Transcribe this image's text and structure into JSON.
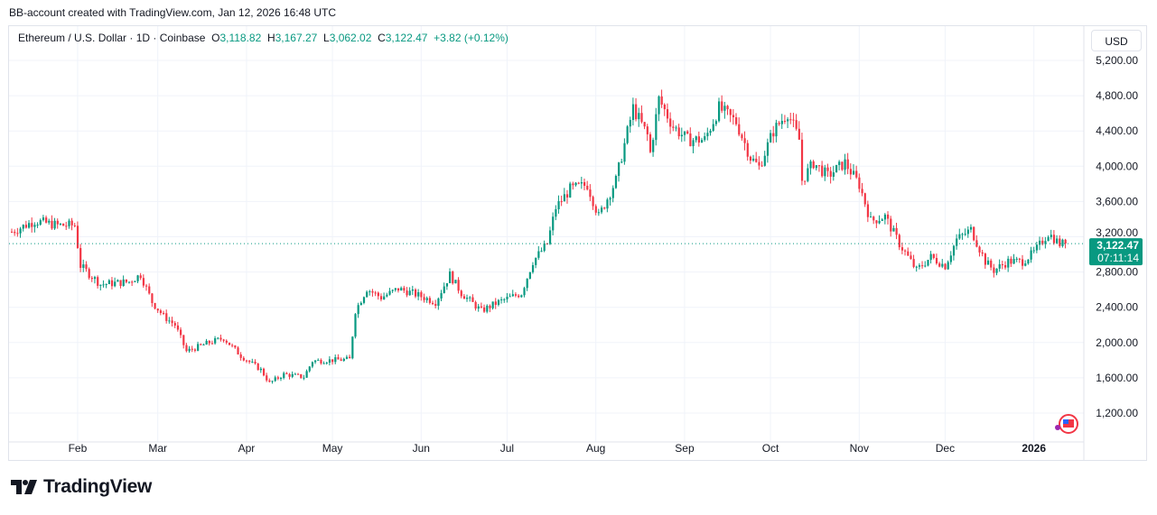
{
  "caption": "BB-account created with TradingView.com, Jan 12, 2026 16:48 UTC",
  "legend": {
    "symbol": "Ethereum / U.S. Dollar · 1D · Coinbase",
    "o_label": "O",
    "o": "3,118.82",
    "h_label": "H",
    "h": "3,167.27",
    "l_label": "L",
    "l": "3,062.02",
    "c_label": "C",
    "c": "3,122.47",
    "change": "+3.82 (+0.12%)"
  },
  "currency": "USD",
  "last_price": {
    "price": "3,122.47",
    "countdown": "07:11:14"
  },
  "brand": "TradingView",
  "colors": {
    "up": "#089981",
    "down": "#f23645"
  },
  "chart_data": {
    "type": "candlestick",
    "title": "Ethereum / U.S. Dollar · 1D · Coinbase",
    "x_unit": "days since Jan 9 2025",
    "total_days": 368,
    "ylim": [
      800,
      5450
    ],
    "y_ticks": [
      1200,
      1600,
      2000,
      2400,
      2800,
      3200,
      3600,
      4000,
      4400,
      4800,
      5200
    ],
    "y_tick_labels": [
      "1,200.00",
      "1,600.00",
      "2,000.00",
      "2,400.00",
      "2,800.00",
      "3,200.00",
      "3,600.00",
      "4,000.00",
      "4,400.00",
      "4,800.00",
      "5,200.00"
    ],
    "x_ticks": [
      {
        "label": "Feb",
        "day": 23
      },
      {
        "label": "Mar",
        "day": 51
      },
      {
        "label": "Apr",
        "day": 82
      },
      {
        "label": "May",
        "day": 112
      },
      {
        "label": "Jun",
        "day": 143
      },
      {
        "label": "Jul",
        "day": 173
      },
      {
        "label": "Aug",
        "day": 204
      },
      {
        "label": "Sep",
        "day": 235
      },
      {
        "label": "Oct",
        "day": 265
      },
      {
        "label": "Nov",
        "day": 296
      },
      {
        "label": "Dec",
        "day": 326
      },
      {
        "label": "2026",
        "day": 357
      }
    ],
    "approx_close_anchors": [
      [
        0,
        3256
      ],
      [
        8,
        3380
      ],
      [
        16,
        3330
      ],
      [
        22,
        3330
      ],
      [
        24,
        2870
      ],
      [
        31,
        2660
      ],
      [
        41,
        2690
      ],
      [
        45,
        2770
      ],
      [
        49,
        2460
      ],
      [
        53,
        2300
      ],
      [
        57,
        2200
      ],
      [
        61,
        1900
      ],
      [
        69,
        2000
      ],
      [
        74,
        2050
      ],
      [
        80,
        1850
      ],
      [
        87,
        1690
      ],
      [
        90,
        1540
      ],
      [
        95,
        1640
      ],
      [
        102,
        1610
      ],
      [
        105,
        1790
      ],
      [
        118,
        1810
      ],
      [
        120,
        2360
      ],
      [
        124,
        2610
      ],
      [
        129,
        2510
      ],
      [
        135,
        2610
      ],
      [
        140,
        2560
      ],
      [
        148,
        2460
      ],
      [
        153,
        2770
      ],
      [
        157,
        2560
      ],
      [
        164,
        2360
      ],
      [
        170,
        2460
      ],
      [
        178,
        2560
      ],
      [
        182,
        2920
      ],
      [
        187,
        3120
      ],
      [
        190,
        3530
      ],
      [
        195,
        3740
      ],
      [
        201,
        3790
      ],
      [
        205,
        3430
      ],
      [
        211,
        3840
      ],
      [
        214,
        4250
      ],
      [
        217,
        4660
      ],
      [
        222,
        4350
      ],
      [
        223,
        4150
      ],
      [
        226,
        4760
      ],
      [
        231,
        4450
      ],
      [
        236,
        4300
      ],
      [
        242,
        4300
      ],
      [
        247,
        4660
      ],
      [
        253,
        4500
      ],
      [
        258,
        4100
      ],
      [
        261,
        3990
      ],
      [
        266,
        4400
      ],
      [
        271,
        4610
      ],
      [
        275,
        4300
      ],
      [
        276,
        3840
      ],
      [
        280,
        4040
      ],
      [
        285,
        3890
      ],
      [
        291,
        4040
      ],
      [
        296,
        3790
      ],
      [
        300,
        3380
      ],
      [
        305,
        3430
      ],
      [
        310,
        3120
      ],
      [
        316,
        2820
      ],
      [
        321,
        2970
      ],
      [
        326,
        2870
      ],
      [
        330,
        3170
      ],
      [
        335,
        3280
      ],
      [
        340,
        2920
      ],
      [
        343,
        2820
      ],
      [
        348,
        2920
      ],
      [
        353,
        2920
      ],
      [
        357,
        3020
      ],
      [
        362,
        3240
      ],
      [
        366,
        3120
      ],
      [
        368,
        3122
      ]
    ],
    "last_close": 3122.47
  }
}
